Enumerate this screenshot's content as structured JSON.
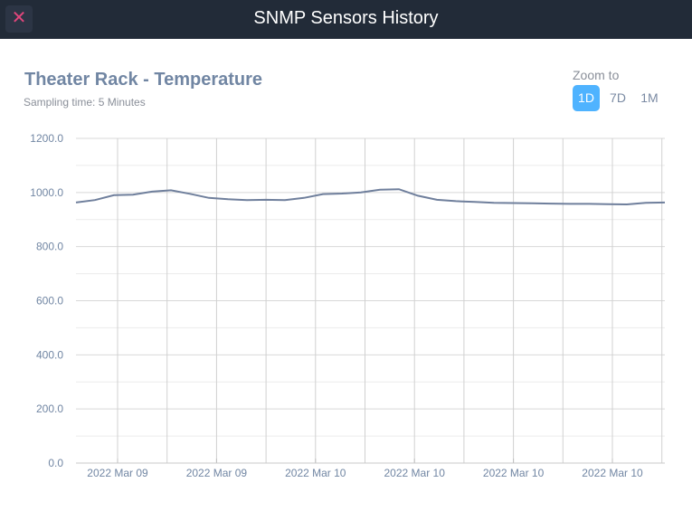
{
  "header": {
    "title": "SNMP Sensors History",
    "close_icon": "close-icon"
  },
  "chart_title": "Theater Rack - Temperature",
  "subtitle": "Sampling time: 5 Minutes",
  "zoom": {
    "label": "Zoom to",
    "options": [
      "1D",
      "7D",
      "1M"
    ],
    "active": "1D",
    "active_color": "#4fb3ff"
  },
  "chart_data": {
    "type": "line",
    "title": "Theater Rack - Temperature",
    "ylim": [
      0,
      1200
    ],
    "yticks": [
      "0.0",
      "200.0",
      "400.0",
      "600.0",
      "800.0",
      "1000.0",
      "1200.0"
    ],
    "xtick_labels": [
      "2022 Mar 09",
      "2022 Mar 09",
      "2022 Mar 10",
      "2022 Mar 10",
      "2022 Mar 10",
      "2022 Mar 10"
    ],
    "grid": true,
    "line_color": "#6f7f9c",
    "values": [
      963,
      972,
      990,
      992,
      1003,
      1008,
      995,
      980,
      975,
      972,
      973,
      972,
      980,
      994,
      996,
      1000,
      1010,
      1012,
      988,
      973,
      968,
      965,
      962,
      961,
      960,
      959,
      958,
      958,
      957,
      956,
      962,
      963
    ]
  }
}
